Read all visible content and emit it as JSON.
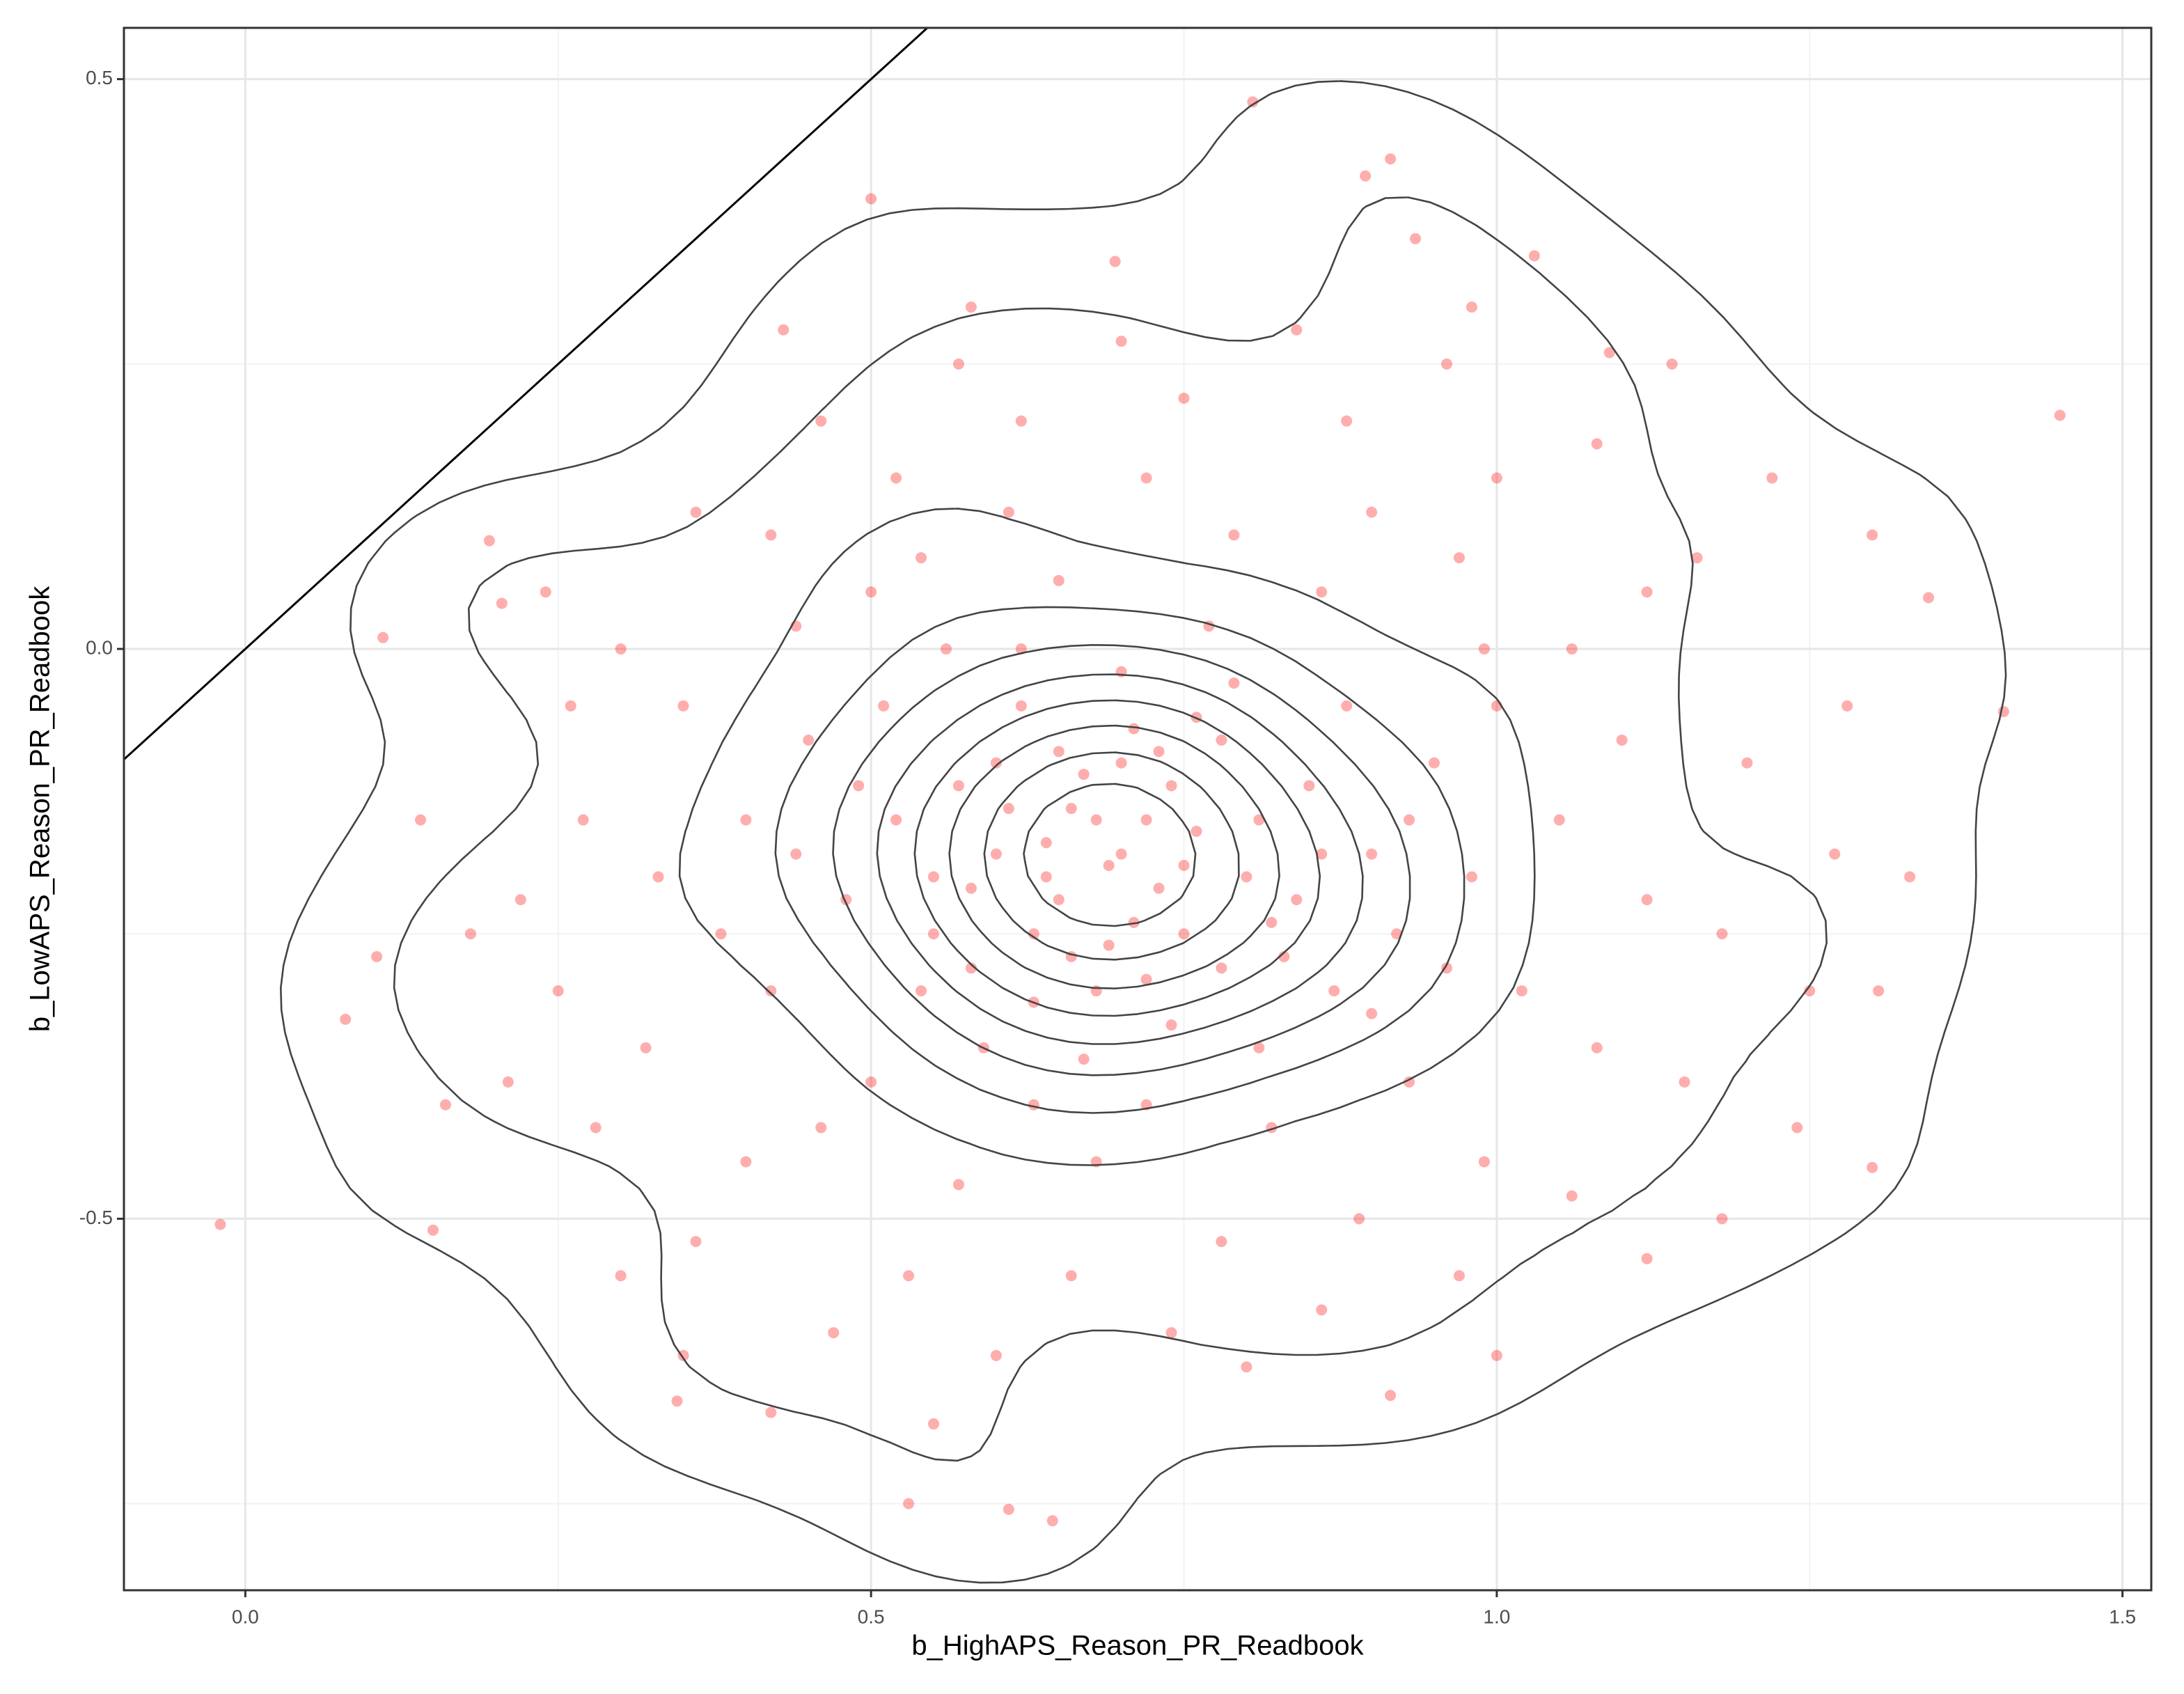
{
  "chart_data": {
    "type": "scatter",
    "x_label": "b_HighAPS_Reason_PR_Readbook",
    "y_label": "b_LowAPS_Reason_PR_Readbook",
    "xlim": [
      -0.097,
      1.523
    ],
    "ylim": [
      -0.826,
      0.545
    ],
    "xticks": [
      {
        "value": 0,
        "label": "0.0"
      },
      0.5,
      {
        "value": 1,
        "label": "1.0"
      },
      1.5
    ],
    "yticks": [
      -0.5,
      {
        "value": 0,
        "label": "0.0"
      },
      0.5
    ],
    "x_minor_grid": [
      0.25,
      0.75,
      1.25
    ],
    "y_minor_grid": [
      -0.75,
      -0.25,
      0.25
    ],
    "grid": true,
    "color": "#ff0000",
    "density_contours": true,
    "reference_line": {
      "slope": 1,
      "intercept": 0
    },
    "x": [
      -0.02,
      0.11,
      0.08,
      0.105,
      0.15,
      0.805,
      0.915,
      0.895,
      0.5,
      1.45,
      1.405,
      1.345,
      1.305,
      0.53,
      0.645,
      0.61,
      1.03,
      0.935,
      0.695,
      1.09,
      1.3,
      1.12,
      0.195,
      0.205,
      0.345,
      0.42,
      0.915,
      0.7,
      0.65,
      0.72,
      0.6,
      0.8,
      0.75,
      0.68,
      0.55,
      0.85,
      0.62,
      0.78,
      0.9,
      0.58,
      0.66,
      0.73,
      0.69,
      0.64,
      0.76,
      0.71,
      0.67,
      0.52,
      0.48,
      0.83,
      0.88,
      0.95,
      0.59,
      0.74,
      0.81,
      0.63,
      0.7,
      0.77,
      0.56,
      0.45,
      0.42,
      0.5,
      0.92,
      0.98,
      1.0,
      0.86,
      0.79,
      0.65,
      0.54,
      0.4,
      0.38,
      0.46,
      0.57,
      0.68,
      0.82,
      0.93,
      1.02,
      1.05,
      1.06,
      0.97,
      0.9,
      0.72,
      0.61,
      0.5,
      0.44,
      0.35,
      0.33,
      0.32,
      0.4,
      0.53,
      0.66,
      0.78,
      0.89,
      0.99,
      1.08,
      1.12,
      1.1,
      1.12,
      1.0,
      0.88,
      0.75,
      0.62,
      0.52,
      0.42,
      0.3,
      0.27,
      0.25,
      0.28,
      0.36,
      0.47,
      0.6,
      0.74,
      0.86,
      0.97,
      1.06,
      1.15,
      1.18,
      1.2,
      1.16,
      1.08,
      0.96,
      0.84,
      0.7,
      0.57,
      0.46,
      0.36,
      0.26,
      0.22,
      0.21,
      0.3,
      0.7,
      0.63,
      0.74,
      0.66,
      0.6,
      0.78,
      0.71,
      0.84,
      0.57,
      0.67,
      0.79,
      0.54,
      0.87,
      0.62,
      0.93,
      0.49,
      0.72,
      0.81,
      0.65,
      0.69,
      0.75,
      0.58,
      0.63,
      0.76,
      0.82,
      0.68,
      0.72,
      0.61,
      0.86,
      0.55,
      0.73,
      0.64,
      0.9,
      0.51,
      0.96,
      0.44,
      0.99,
      1.25,
      1.22,
      1.28,
      1.3,
      1.24,
      0.18,
      0.14,
      0.16,
      0.24,
      0.43,
      0.58,
      0.98,
      1.14,
      1.27,
      1.33,
      0.35,
      0.55,
      0.8,
      1.0,
      1.18
    ],
    "values": [
      -0.505,
      0.01,
      -0.325,
      -0.27,
      -0.51,
      0.48,
      0.43,
      0.415,
      0.395,
      0.205,
      -0.055,
      0.045,
      -0.3,
      -0.75,
      -0.765,
      -0.755,
      0.345,
      0.36,
      0.34,
      0.26,
      -0.455,
      -0.535,
      0.095,
      0.04,
      -0.66,
      -0.67,
      -0.655,
      -0.18,
      -0.22,
      -0.15,
      -0.1,
      -0.2,
      -0.25,
      -0.3,
      -0.2,
      -0.12,
      -0.05,
      -0.08,
      -0.18,
      -0.28,
      -0.14,
      -0.21,
      -0.19,
      -0.17,
      -0.16,
      -0.24,
      -0.11,
      -0.15,
      -0.22,
      -0.27,
      -0.05,
      -0.1,
      -0.35,
      -0.33,
      -0.35,
      -0.4,
      -0.02,
      0.02,
      0.0,
      -0.08,
      -0.3,
      -0.38,
      -0.25,
      -0.2,
      -0.05,
      0.05,
      0.1,
      0.06,
      0.08,
      -0.15,
      -0.25,
      -0.42,
      -0.47,
      -0.45,
      -0.42,
      -0.38,
      -0.3,
      -0.15,
      0.0,
      0.08,
      0.12,
      0.15,
      0.12,
      0.05,
      0.02,
      -0.05,
      -0.2,
      -0.35,
      -0.45,
      -0.55,
      -0.55,
      -0.52,
      -0.5,
      -0.45,
      -0.35,
      -0.22,
      -0.08,
      0.05,
      0.15,
      0.2,
      0.22,
      0.2,
      0.15,
      0.1,
      0.0,
      -0.15,
      -0.3,
      -0.42,
      -0.52,
      -0.6,
      -0.62,
      -0.6,
      -0.58,
      -0.55,
      -0.48,
      -0.38,
      -0.25,
      -0.1,
      0.08,
      0.18,
      0.25,
      0.28,
      0.27,
      0.25,
      0.2,
      0.12,
      -0.05,
      -0.22,
      -0.38,
      -0.55,
      -0.1,
      -0.25,
      -0.12,
      -0.27,
      -0.18,
      -0.28,
      -0.07,
      -0.22,
      -0.12,
      -0.36,
      -0.03,
      -0.3,
      -0.3,
      0.0,
      -0.15,
      -0.12,
      -0.4,
      -0.15,
      -0.09,
      -0.26,
      -0.19,
      -0.21,
      -0.31,
      -0.06,
      -0.24,
      -0.15,
      -0.29,
      -0.14,
      -0.18,
      -0.25,
      -0.09,
      -0.2,
      -0.32,
      -0.05,
      -0.28,
      -0.18,
      0.0,
      -0.3,
      0.15,
      -0.05,
      0.1,
      -0.42,
      -0.25,
      -0.15,
      -0.4,
      0.05,
      0.28,
      0.3,
      0.3,
      0.25,
      -0.18,
      -0.2,
      -0.62,
      -0.68,
      -0.63,
      -0.62,
      -0.5
    ]
  }
}
